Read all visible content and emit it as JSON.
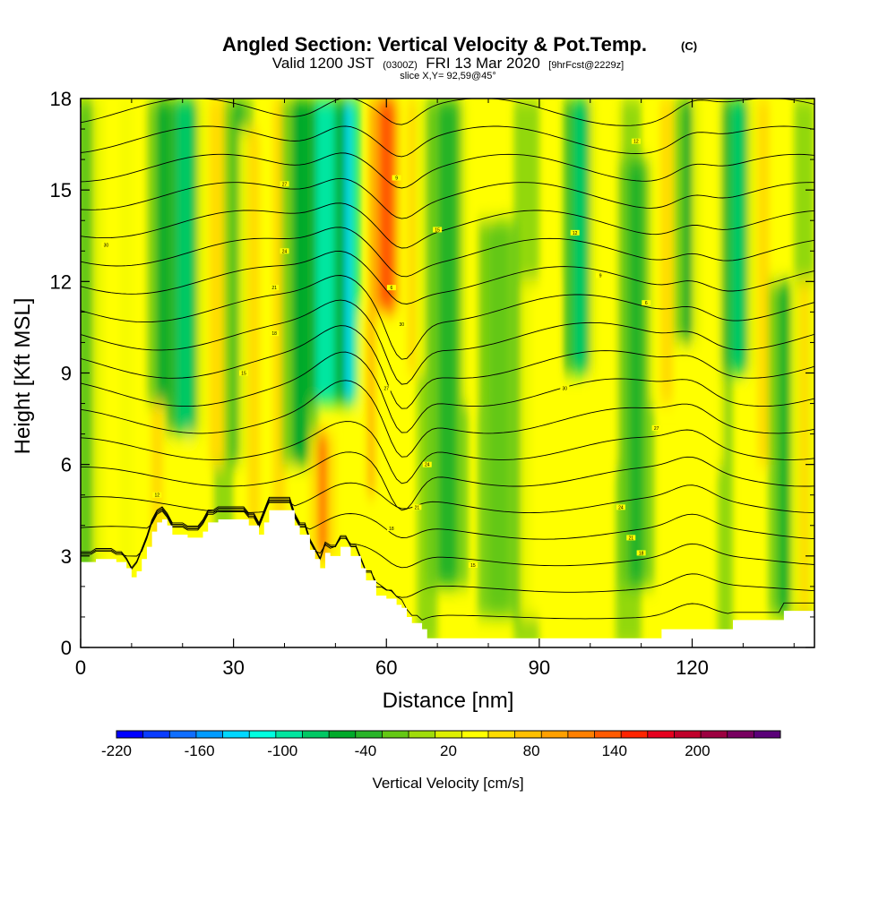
{
  "title": {
    "main": "Angled Section: Vertical Velocity & Pot.Temp.",
    "main_suffix": "(C)",
    "line2_a": "Valid 1200 JST",
    "line2_b": "(0300Z)",
    "line2_c": "FRI 13 Mar 2020",
    "line2_d": "[9hrFcst@2229z]",
    "line3": "slice X,Y= 92,59@45°"
  },
  "chart_data": {
    "type": "heatmap",
    "xlabel": "Distance [nm]",
    "ylabel": "Height [Kft MSL]",
    "xlim": [
      0,
      144
    ],
    "ylim": [
      0,
      18
    ],
    "x_ticks": [
      0,
      30,
      60,
      90,
      120
    ],
    "y_ticks": [
      0,
      3,
      6,
      9,
      12,
      15,
      18
    ],
    "colorbar": {
      "label": "Vertical Velocity [cm/s]",
      "ticks": [
        "-220",
        "-160",
        "-100",
        "-40",
        "20",
        "80",
        "140",
        "200"
      ],
      "levels_min": -220,
      "levels_max": 240,
      "level_step": 20,
      "colors": [
        "#0000ff",
        "#0a3cff",
        "#0f6eff",
        "#009bff",
        "#00d8ff",
        "#00ffe0",
        "#00e6a0",
        "#00c864",
        "#00aa2a",
        "#28b428",
        "#64c814",
        "#a0dc0a",
        "#ddf000",
        "#ffff00",
        "#ffdd00",
        "#ffc000",
        "#ffa000",
        "#ff8000",
        "#ff5a00",
        "#ff2400",
        "#e6001e",
        "#c0002a",
        "#9c0040",
        "#780060",
        "#5a0078"
      ]
    },
    "contour_labels": [
      "30",
      "27",
      "24",
      "21",
      "18",
      "15",
      "12",
      "9",
      "6"
    ],
    "terrain_kft": [
      {
        "x": 0,
        "h": 2.8
      },
      {
        "x": 3,
        "h": 2.9
      },
      {
        "x": 7,
        "h": 2.8
      },
      {
        "x": 9,
        "h": 2.6
      },
      {
        "x": 10,
        "h": 2.3
      },
      {
        "x": 11,
        "h": 2.5
      },
      {
        "x": 12,
        "h": 2.9
      },
      {
        "x": 13,
        "h": 3.3
      },
      {
        "x": 14,
        "h": 3.8
      },
      {
        "x": 15,
        "h": 4.1
      },
      {
        "x": 16,
        "h": 4.2
      },
      {
        "x": 17,
        "h": 4.0
      },
      {
        "x": 18,
        "h": 3.7
      },
      {
        "x": 21,
        "h": 3.6
      },
      {
        "x": 24,
        "h": 3.8
      },
      {
        "x": 25,
        "h": 4.1
      },
      {
        "x": 27,
        "h": 4.2
      },
      {
        "x": 31,
        "h": 4.2
      },
      {
        "x": 33,
        "h": 4.0
      },
      {
        "x": 35,
        "h": 3.7
      },
      {
        "x": 36,
        "h": 4.1
      },
      {
        "x": 37,
        "h": 4.5
      },
      {
        "x": 41,
        "h": 4.5
      },
      {
        "x": 42,
        "h": 4.0
      },
      {
        "x": 43,
        "h": 3.7
      },
      {
        "x": 45,
        "h": 3.2
      },
      {
        "x": 46,
        "h": 2.9
      },
      {
        "x": 47,
        "h": 2.6
      },
      {
        "x": 48,
        "h": 3.1
      },
      {
        "x": 49,
        "h": 3.0
      },
      {
        "x": 51,
        "h": 3.3
      },
      {
        "x": 53,
        "h": 3.0
      },
      {
        "x": 55,
        "h": 2.6
      },
      {
        "x": 56,
        "h": 2.2
      },
      {
        "x": 58,
        "h": 1.7
      },
      {
        "x": 60,
        "h": 1.6
      },
      {
        "x": 62,
        "h": 1.4
      },
      {
        "x": 63,
        "h": 1.3
      },
      {
        "x": 64,
        "h": 1.0
      },
      {
        "x": 65,
        "h": 0.8
      },
      {
        "x": 67,
        "h": 0.6
      },
      {
        "x": 68,
        "h": 0.3
      },
      {
        "x": 100,
        "h": 0.3
      },
      {
        "x": 114,
        "h": 0.3
      },
      {
        "x": 114,
        "h": 0.6
      },
      {
        "x": 125,
        "h": 0.6
      },
      {
        "x": 128,
        "h": 0.9
      },
      {
        "x": 133,
        "h": 0.9
      },
      {
        "x": 138,
        "h": 1.2
      },
      {
        "x": 144,
        "h": 1.2
      }
    ],
    "bands": [
      {
        "x": 1.5,
        "w": 2,
        "v": -20,
        "ytop": 18,
        "ybot": 0
      },
      {
        "x": 6,
        "w": 2.5,
        "v": 50,
        "ytop": 18,
        "ybot": 0
      },
      {
        "x": 11.5,
        "w": 1.8,
        "v": 40,
        "ytop": 18,
        "ybot": 2
      },
      {
        "x": 15,
        "w": 2.0,
        "v": 70,
        "ytop": 8,
        "ybot": 3
      },
      {
        "x": 16.5,
        "w": 2.5,
        "v": -60,
        "ytop": 18,
        "ybot": 8
      },
      {
        "x": 20.5,
        "w": 2.8,
        "v": -80,
        "ytop": 18,
        "ybot": 7
      },
      {
        "x": 23,
        "w": 1.5,
        "v": 50,
        "ytop": 7,
        "ybot": 3
      },
      {
        "x": 27,
        "w": 3,
        "v": 70,
        "ytop": 18,
        "ybot": 6
      },
      {
        "x": 31,
        "w": 1.8,
        "v": -40,
        "ytop": 18,
        "ybot": 6
      },
      {
        "x": 34,
        "w": 2,
        "v": 60,
        "ytop": 17,
        "ybot": 4
      },
      {
        "x": 39,
        "w": 2.2,
        "v": 60,
        "ytop": 18,
        "ybot": 4
      },
      {
        "x": 43,
        "w": 2.5,
        "v": -60,
        "ytop": 18,
        "ybot": 6
      },
      {
        "x": 47.5,
        "w": 1.6,
        "v": 120,
        "ytop": 7,
        "ybot": 3
      },
      {
        "x": 52,
        "w": 1.8,
        "v": -140,
        "ytop": 18,
        "ybot": 8
      },
      {
        "x": 48,
        "w": 3,
        "v": -90,
        "ytop": 18,
        "ybot": 8
      },
      {
        "x": 60,
        "w": 2.3,
        "v": 150,
        "ytop": 18,
        "ybot": 11
      },
      {
        "x": 57,
        "w": 1.5,
        "v": 90,
        "ytop": 11,
        "ybot": 5
      },
      {
        "x": 65,
        "w": 1.5,
        "v": 70,
        "ytop": 18,
        "ybot": 9
      },
      {
        "x": 72,
        "w": 3,
        "v": -30,
        "ytop": 18,
        "ybot": 2
      },
      {
        "x": 78,
        "w": 2,
        "v": 40,
        "ytop": 18,
        "ybot": 8
      },
      {
        "x": 82,
        "w": 3,
        "v": -20,
        "ytop": 14,
        "ybot": 1
      },
      {
        "x": 90,
        "w": 2.5,
        "v": 40,
        "ytop": 12,
        "ybot": 1
      },
      {
        "x": 98,
        "w": 2.2,
        "v": -70,
        "ytop": 18,
        "ybot": 9
      },
      {
        "x": 103,
        "w": 2,
        "v": 50,
        "ytop": 18,
        "ybot": 6
      },
      {
        "x": 109,
        "w": 2.5,
        "v": -30,
        "ytop": 16,
        "ybot": 2
      },
      {
        "x": 115,
        "w": 2.2,
        "v": 60,
        "ytop": 18,
        "ybot": 8
      },
      {
        "x": 119.5,
        "w": 2,
        "v": -60,
        "ytop": 18,
        "ybot": 10
      },
      {
        "x": 123,
        "w": 2,
        "v": 50,
        "ytop": 18,
        "ybot": 6
      },
      {
        "x": 129,
        "w": 2.2,
        "v": -70,
        "ytop": 18,
        "ybot": 9
      },
      {
        "x": 134,
        "w": 2,
        "v": 60,
        "ytop": 18,
        "ybot": 6
      },
      {
        "x": 138,
        "w": 2,
        "v": -30,
        "ytop": 12,
        "ybot": 1
      },
      {
        "x": 142,
        "w": 1.5,
        "v": 60,
        "ytop": 12,
        "ybot": 1
      }
    ]
  }
}
